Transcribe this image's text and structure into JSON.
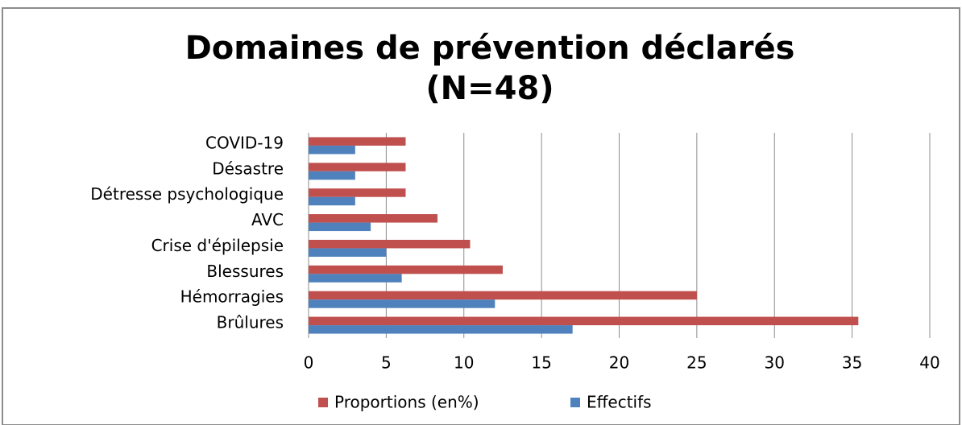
{
  "chart_data": {
    "type": "bar",
    "orientation": "horizontal",
    "title": [
      "Domaines de prévention déclarés",
      "(N=48)"
    ],
    "categories": [
      "Brûlures",
      "Hémorragies",
      "Blessures",
      "Crise d'épilepsie",
      "AVC",
      "Détresse psychologique",
      "Désastre",
      "COVID-19"
    ],
    "series": [
      {
        "name": "Proportions (en%)",
        "color": "#c0504d",
        "values": [
          35.4,
          25,
          12.5,
          10.4,
          8.3,
          6.25,
          6.25,
          6.25
        ]
      },
      {
        "name": "Effectifs",
        "color": "#4f81bd",
        "values": [
          17,
          12,
          6,
          5,
          4,
          3,
          3,
          3
        ]
      }
    ],
    "xlim": [
      0,
      40
    ],
    "xticks": [
      0,
      5,
      10,
      15,
      20,
      25,
      30,
      35,
      40
    ],
    "grid": true,
    "legend": "bottom"
  }
}
